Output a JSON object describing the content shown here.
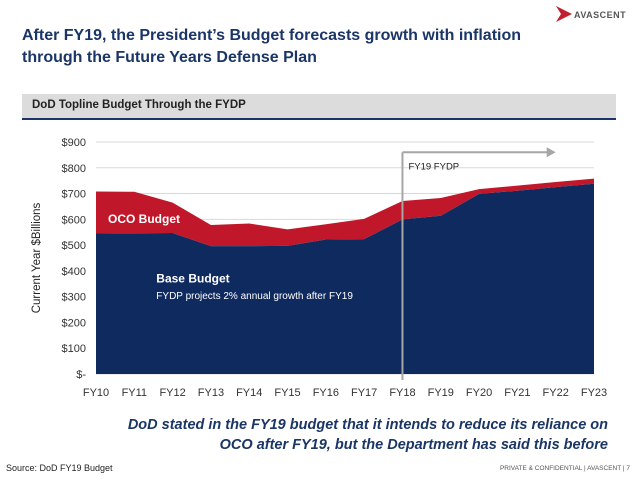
{
  "title": "After FY19, the President’s Budget forecasts growth with inflation through the Future Years Defense Plan",
  "logo": {
    "text": "AVASCENT",
    "icon": "avascent-arrow-logo",
    "color": "#c0202f"
  },
  "header_bar": "DoD Topline Budget Through the FYDP",
  "note": "DoD stated in the FY19 budget that it intends to reduce its reliance on OCO after FY19, but the Department has said this before",
  "source": "Source: DoD FY19 Budget",
  "footer": "PRIVATE & CONFIDENTIAL | AVASCENT | 7",
  "chart_data": {
    "type": "area",
    "stacked": true,
    "categories": [
      "FY10",
      "FY11",
      "FY12",
      "FY13",
      "FY14",
      "FY15",
      "FY16",
      "FY17",
      "FY18",
      "FY19",
      "FY20",
      "FY21",
      "FY22",
      "FY23"
    ],
    "series": [
      {
        "name": "Base Budget",
        "color": "#0f2a5f",
        "values": [
          545,
          546,
          547,
          496,
          496,
          497,
          522,
          523,
          600,
          614,
          699,
          711,
          725,
          738
        ]
      },
      {
        "name": "OCO Budget",
        "color": "#c0182a",
        "values": [
          163,
          161,
          118,
          82,
          88,
          64,
          59,
          79,
          71,
          69,
          18,
          20,
          20,
          20
        ]
      }
    ],
    "ylabel": "Current Year $Billions",
    "ylim": [
      0,
      900
    ],
    "yticks": [
      0,
      100,
      200,
      300,
      400,
      500,
      600,
      700,
      800,
      900
    ],
    "ytick_labels": [
      "$-",
      "$100",
      "$200",
      "$300",
      "$400",
      "$500",
      "$600",
      "$700",
      "$800",
      "$900"
    ],
    "grid": true,
    "annotations": {
      "oco_label": "OCO Budget",
      "base_label": "Base Budget",
      "base_sublabel": "FYDP projects 2% annual growth after FY19",
      "fydp_label": "FY19 FYDP",
      "fydp_start": "FY18",
      "fydp_end": "FY22"
    }
  }
}
